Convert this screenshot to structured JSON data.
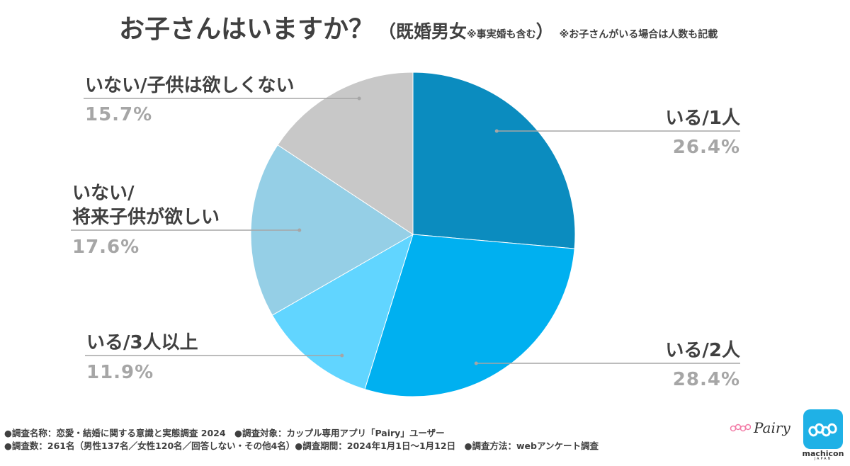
{
  "title": {
    "main": "お子さんはいますか？",
    "sub_open": "（既婚男女",
    "sub_note": "※事実婚も含む",
    "sub_close": "）",
    "note2": "※お子さんがいる場合は人数も記載"
  },
  "chart_data": {
    "type": "pie",
    "slices": [
      {
        "label": "いる/1人",
        "value": 26.4,
        "value_label": "26.4%",
        "color": "#0b8cbf"
      },
      {
        "label": "いる/2人",
        "value": 28.4,
        "value_label": "28.4%",
        "color": "#00b0f0"
      },
      {
        "label": "いる/3人以上",
        "value": 11.9,
        "value_label": "11.9%",
        "color": "#61d5ff"
      },
      {
        "label_lines": [
          "いない/",
          "将来子供が欲しい"
        ],
        "value": 17.6,
        "value_label": "17.6%",
        "color": "#95cfe6"
      },
      {
        "label": "いない/子供は欲しくない",
        "value": 15.7,
        "value_label": "15.7%",
        "color": "#c8c8c8"
      }
    ],
    "start": "12 o'clock",
    "direction": "clockwise"
  },
  "footer": {
    "line1": "●調査名称：恋愛・結婚に関する意識と実態調査 2024　●調査対象：カップル専用アプリ「Pairy」ユーザー",
    "line2": "●調査数：261名（男性137名／女性120名／回答しない・その他4名）●調査期間：2024年1月1日～1月12日　●調査方法：webアンケート調査"
  },
  "logos": {
    "pairy": "Pairy",
    "machicon": "machicon",
    "machicon_sub": "JAPAN"
  }
}
